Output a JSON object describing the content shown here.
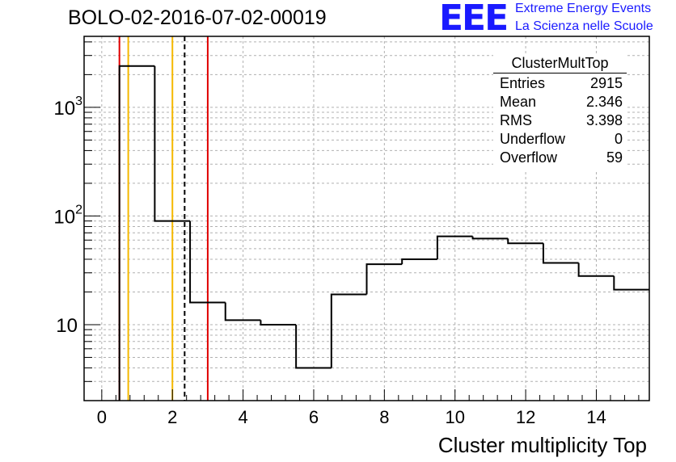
{
  "page_title": "BOLO-02-2016-07-02-00019",
  "logo": {
    "mark": "EEE",
    "line1": "Extreme Energy Events",
    "line2": "La Scienza nelle Scuole",
    "color": "#1a1aff"
  },
  "stats_box": {
    "title": "ClusterMultTop",
    "rows": [
      {
        "key": "Entries",
        "value": "2915"
      },
      {
        "key": "Mean",
        "value": "2.346"
      },
      {
        "key": "RMS",
        "value": "3.398"
      },
      {
        "key": "Underflow",
        "value": "0"
      },
      {
        "key": "Overflow",
        "value": "59"
      }
    ]
  },
  "chart_data": {
    "type": "histogram",
    "title": "BOLO-02-2016-07-02-00019",
    "xlabel": "Cluster multiplicity Top",
    "ylabel": "",
    "xlim": [
      -0.5,
      15.5
    ],
    "ylim": [
      2,
      4500
    ],
    "y_scale": "log",
    "grid": true,
    "x_ticks": [
      0,
      2,
      4,
      6,
      8,
      10,
      12,
      14
    ],
    "y_ticks": [
      {
        "value": 10,
        "base": "10",
        "exp": ""
      },
      {
        "value": 100,
        "base": "10",
        "exp": "2"
      },
      {
        "value": 1000,
        "base": "10",
        "exp": "3"
      }
    ],
    "bins": [
      {
        "x0": -0.5,
        "x1": 0.5,
        "y": 0
      },
      {
        "x0": 0.5,
        "x1": 1.5,
        "y": 2400
      },
      {
        "x0": 1.5,
        "x1": 2.5,
        "y": 90
      },
      {
        "x0": 2.5,
        "x1": 3.5,
        "y": 16
      },
      {
        "x0": 3.5,
        "x1": 4.5,
        "y": 11
      },
      {
        "x0": 4.5,
        "x1": 5.5,
        "y": 10
      },
      {
        "x0": 5.5,
        "x1": 6.5,
        "y": 4
      },
      {
        "x0": 6.5,
        "x1": 7.5,
        "y": 19
      },
      {
        "x0": 7.5,
        "x1": 8.5,
        "y": 36
      },
      {
        "x0": 8.5,
        "x1": 9.5,
        "y": 40
      },
      {
        "x0": 9.5,
        "x1": 10.5,
        "y": 65
      },
      {
        "x0": 10.5,
        "x1": 11.5,
        "y": 62
      },
      {
        "x0": 11.5,
        "x1": 12.5,
        "y": 56
      },
      {
        "x0": 12.5,
        "x1": 13.5,
        "y": 37
      },
      {
        "x0": 13.5,
        "x1": 14.5,
        "y": 28
      },
      {
        "x0": 14.5,
        "x1": 15.5,
        "y": 21
      }
    ],
    "vertical_lines": [
      {
        "x": 0.5,
        "color": "#e00000",
        "style": "solid"
      },
      {
        "x": 0.75,
        "color": "#f5b800",
        "style": "solid"
      },
      {
        "x": 2.0,
        "color": "#f5b800",
        "style": "solid"
      },
      {
        "x": 2.346,
        "color": "#000000",
        "style": "dashed"
      },
      {
        "x": 3.0,
        "color": "#e00000",
        "style": "solid"
      }
    ]
  }
}
